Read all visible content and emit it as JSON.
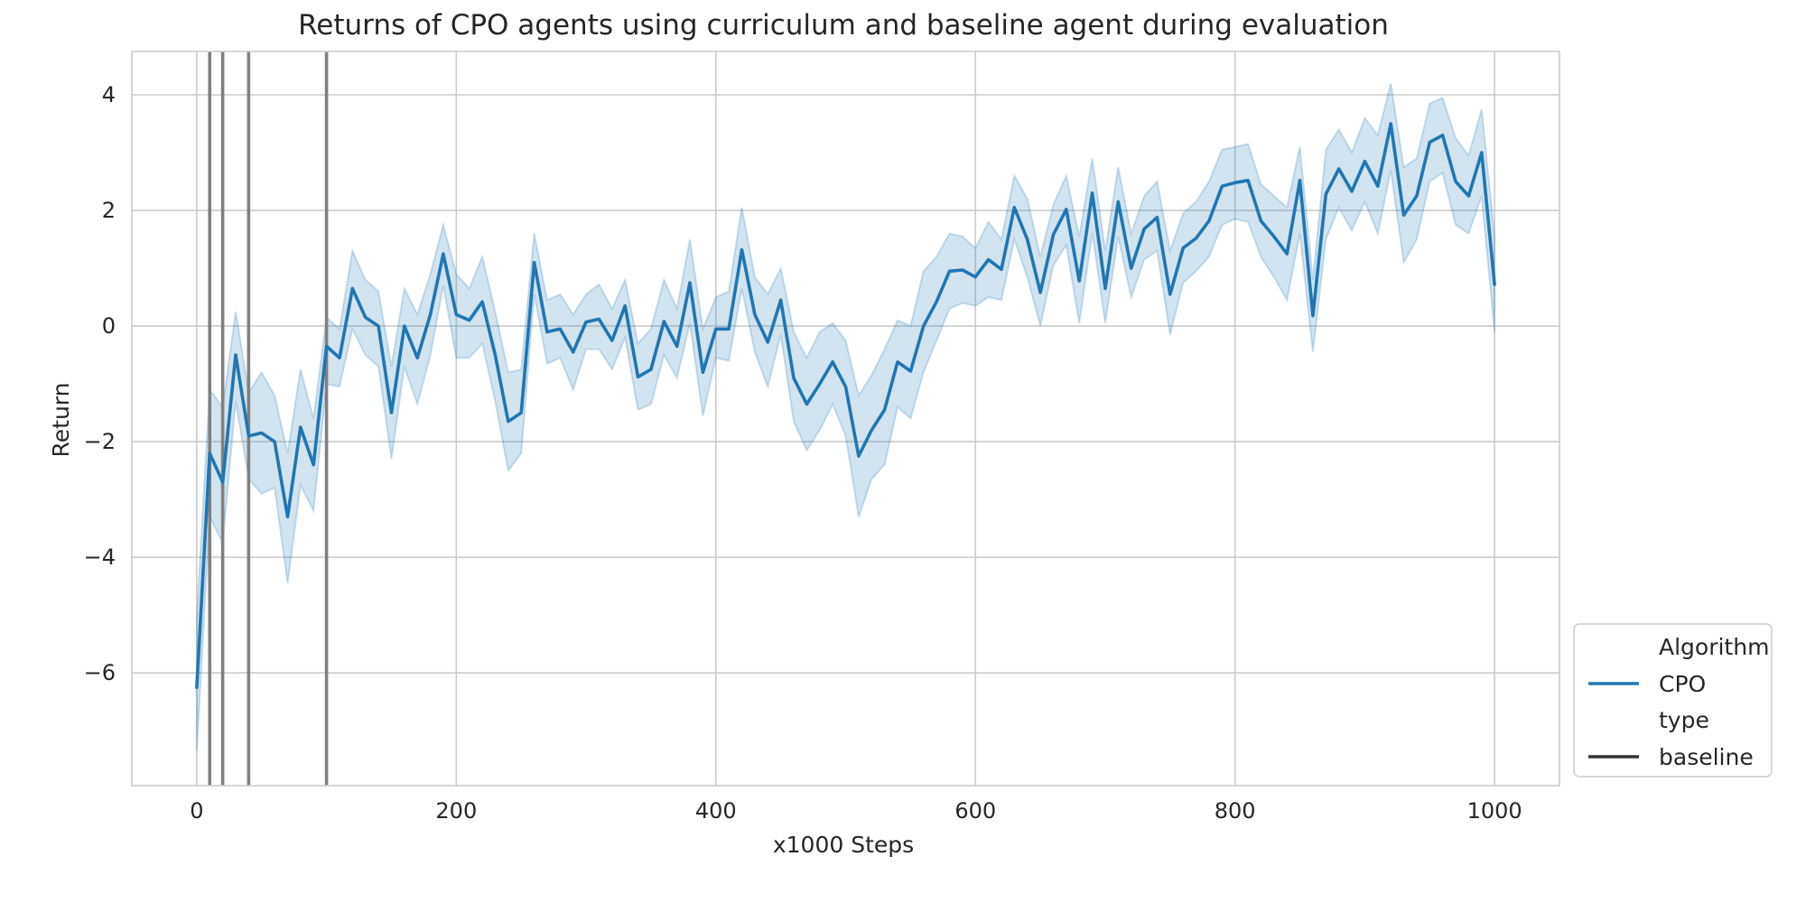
{
  "chart_data": {
    "type": "line",
    "title": "Returns of CPO agents using curriculum and baseline agent during evaluation",
    "xlabel": "x1000 Steps",
    "ylabel": "Return",
    "xlim": [
      -50,
      1050
    ],
    "ylim": [
      -7.95,
      4.75
    ],
    "xticks": [
      0,
      200,
      400,
      600,
      800,
      1000
    ],
    "yticks": [
      -6,
      -4,
      -2,
      0,
      2,
      4
    ],
    "xtick_labels": [
      "0",
      "200",
      "400",
      "600",
      "800",
      "1000"
    ],
    "ytick_labels": [
      "−6",
      "−4",
      "−2",
      "0",
      "2",
      "4"
    ],
    "grid": true,
    "legend_position": "outside-bottom-right",
    "legend": [
      {
        "label": "Algorithm",
        "kind": "header"
      },
      {
        "label": "CPO",
        "kind": "line",
        "color": "#1f77b4"
      },
      {
        "label": "type",
        "kind": "header"
      },
      {
        "label": "baseline",
        "kind": "line",
        "color": "#333333"
      }
    ],
    "vlines": [
      10,
      20,
      40,
      100
    ],
    "vline_color": "#808080",
    "series": [
      {
        "name": "CPO",
        "color": "#1f77b4",
        "band_color": "#1f77b4",
        "x": [
          0,
          10,
          20,
          30,
          40,
          50,
          60,
          70,
          80,
          90,
          100,
          110,
          120,
          130,
          140,
          150,
          160,
          170,
          180,
          190,
          200,
          210,
          220,
          230,
          240,
          250,
          260,
          270,
          280,
          290,
          300,
          310,
          320,
          330,
          340,
          350,
          360,
          370,
          380,
          390,
          400,
          410,
          420,
          430,
          440,
          450,
          460,
          470,
          480,
          490,
          500,
          510,
          520,
          530,
          540,
          550,
          560,
          570,
          580,
          590,
          600,
          610,
          620,
          630,
          640,
          650,
          660,
          670,
          680,
          690,
          700,
          710,
          720,
          730,
          740,
          750,
          760,
          770,
          780,
          790,
          800,
          810,
          820,
          830,
          840,
          850,
          860,
          870,
          880,
          890,
          900,
          910,
          920,
          930,
          940,
          950,
          960,
          970,
          980,
          990,
          1000
        ],
        "y": [
          -6.25,
          -2.2,
          -2.7,
          -0.5,
          -1.9,
          -1.85,
          -2.0,
          -3.3,
          -1.75,
          -2.4,
          -0.35,
          -0.55,
          0.65,
          0.15,
          0.0,
          -1.5,
          0.0,
          -0.55,
          0.2,
          1.25,
          0.2,
          0.1,
          0.42,
          -0.5,
          -1.65,
          -1.5,
          1.1,
          -0.1,
          -0.05,
          -0.45,
          0.07,
          0.12,
          -0.25,
          0.35,
          -0.88,
          -0.75,
          0.08,
          -0.35,
          0.75,
          -0.8,
          -0.05,
          -0.05,
          1.32,
          0.2,
          -0.28,
          0.45,
          -0.9,
          -1.35,
          -1.0,
          -0.62,
          -1.05,
          -2.25,
          -1.8,
          -1.45,
          -0.62,
          -0.78,
          0.0,
          0.42,
          0.95,
          0.97,
          0.85,
          1.15,
          0.98,
          2.05,
          1.5,
          0.58,
          1.58,
          2.02,
          0.78,
          2.3,
          0.65,
          2.15,
          1.0,
          1.68,
          1.88,
          0.55,
          1.35,
          1.52,
          1.82,
          2.42,
          2.48,
          2.52,
          1.82,
          1.55,
          1.25,
          2.52,
          0.18,
          2.28,
          2.72,
          2.33,
          2.85,
          2.42,
          3.5,
          1.92,
          2.25,
          3.18,
          3.3,
          2.5,
          2.25,
          3.0,
          0.72
        ],
        "y_lower": [
          -7.35,
          -3.3,
          -3.75,
          -1.3,
          -2.65,
          -2.9,
          -2.8,
          -4.45,
          -2.75,
          -3.2,
          -1.0,
          -1.05,
          -0.05,
          -0.5,
          -0.7,
          -2.3,
          -0.7,
          -1.35,
          -0.5,
          0.7,
          -0.55,
          -0.55,
          -0.3,
          -1.3,
          -2.5,
          -2.2,
          0.55,
          -0.65,
          -0.55,
          -1.1,
          -0.4,
          -0.4,
          -0.75,
          -0.2,
          -1.45,
          -1.35,
          -0.5,
          -0.9,
          0.05,
          -1.55,
          -0.55,
          -0.6,
          0.65,
          -0.45,
          -1.05,
          -0.15,
          -1.65,
          -2.15,
          -1.8,
          -1.35,
          -1.9,
          -3.3,
          -2.65,
          -2.4,
          -1.4,
          -1.6,
          -0.8,
          -0.25,
          0.3,
          0.4,
          0.35,
          0.5,
          0.45,
          1.5,
          0.85,
          0.0,
          1.05,
          1.4,
          0.05,
          1.6,
          0.05,
          1.55,
          0.5,
          1.15,
          1.3,
          -0.15,
          0.75,
          0.95,
          1.2,
          1.75,
          1.85,
          1.8,
          1.2,
          0.85,
          0.45,
          1.6,
          -0.45,
          1.5,
          2.05,
          1.65,
          2.15,
          1.6,
          2.7,
          1.1,
          1.5,
          2.5,
          2.65,
          1.75,
          1.6,
          2.25,
          -0.1
        ],
        "y_upper": [
          -5.05,
          -1.1,
          -1.4,
          0.25,
          -1.15,
          -0.8,
          -1.2,
          -2.2,
          -0.75,
          -1.6,
          0.15,
          -0.05,
          1.3,
          0.8,
          0.6,
          -0.7,
          0.65,
          0.2,
          0.9,
          1.75,
          0.9,
          0.65,
          1.2,
          0.25,
          -0.8,
          -0.75,
          1.6,
          0.45,
          0.55,
          0.2,
          0.55,
          0.72,
          0.3,
          0.8,
          -0.3,
          -0.05,
          0.8,
          0.3,
          1.5,
          -0.05,
          0.5,
          0.6,
          2.05,
          0.85,
          0.55,
          1.0,
          -0.1,
          -0.55,
          -0.1,
          0.05,
          -0.25,
          -1.2,
          -0.85,
          -0.4,
          0.1,
          0.0,
          0.95,
          1.2,
          1.6,
          1.55,
          1.35,
          1.8,
          1.5,
          2.6,
          2.2,
          1.2,
          2.1,
          2.6,
          1.55,
          2.9,
          1.3,
          2.75,
          1.6,
          2.25,
          2.5,
          1.3,
          1.95,
          2.15,
          2.5,
          3.05,
          3.1,
          3.15,
          2.45,
          2.25,
          2.05,
          3.1,
          0.8,
          3.05,
          3.4,
          3.0,
          3.6,
          3.3,
          4.2,
          2.75,
          2.9,
          3.85,
          3.95,
          3.25,
          2.95,
          3.75,
          1.55
        ]
      }
    ]
  }
}
